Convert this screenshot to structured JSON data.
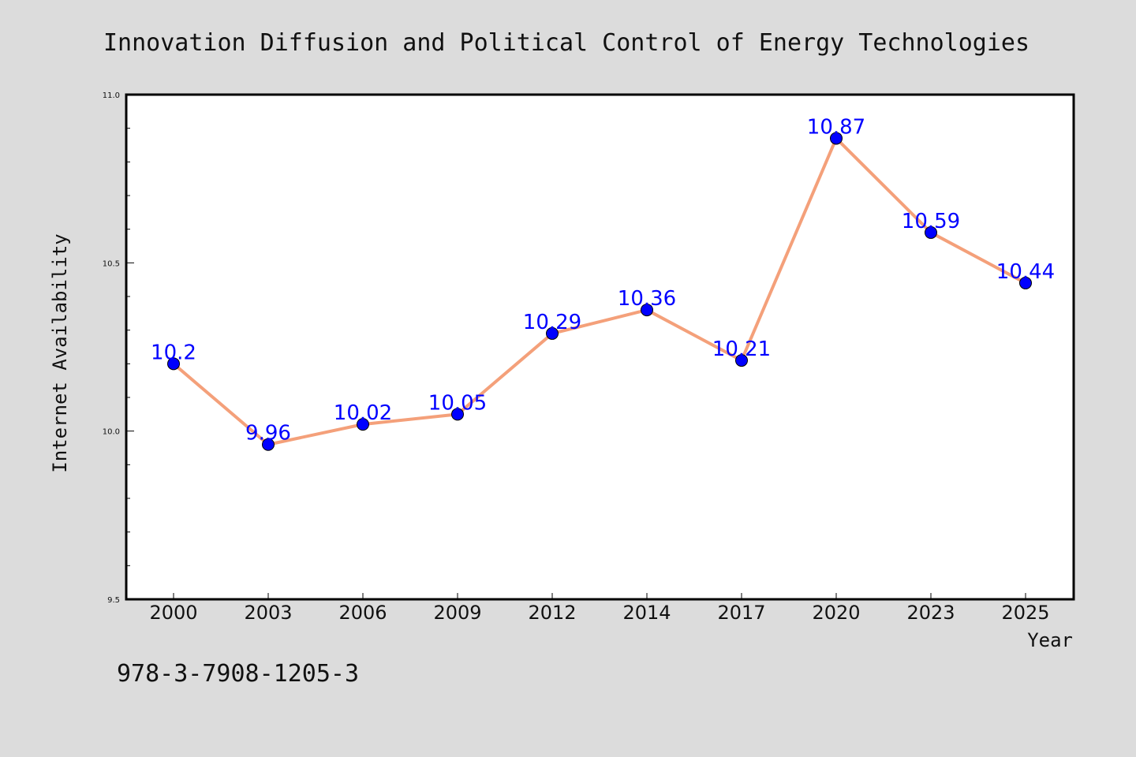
{
  "figure": {
    "background": "#dcdcdc",
    "plot_background": "#ffffff",
    "isbn": "978-3-7908-1205-3"
  },
  "chart_data": {
    "type": "line",
    "title": "Innovation Diffusion and Political Control of Energy Technologies",
    "xlabel": "Year",
    "ylabel": "Internet Availability",
    "categories": [
      "2000",
      "2003",
      "2006",
      "2009",
      "2012",
      "2014",
      "2017",
      "2020",
      "2023",
      "2025"
    ],
    "series": [
      {
        "values": [
          10.2,
          9.96,
          10.02,
          10.05,
          10.29,
          10.36,
          10.21,
          10.87,
          10.59,
          10.44
        ],
        "data_labels": [
          "10.2",
          "9.96",
          "10.02",
          "10.05",
          "10.29",
          "10.36",
          "10.21",
          "10.87",
          "10.59",
          "10.44"
        ],
        "line_color": "#f4a07a",
        "marker_color": "#0000ff",
        "label_color": "#0000ff"
      }
    ],
    "ylim": [
      9.5,
      11.0
    ],
    "y_ticks": [
      "9.5",
      "10.0",
      "10.5",
      "11.0"
    ],
    "y_minor_step": 0.1,
    "grid": false,
    "legend": "none"
  }
}
